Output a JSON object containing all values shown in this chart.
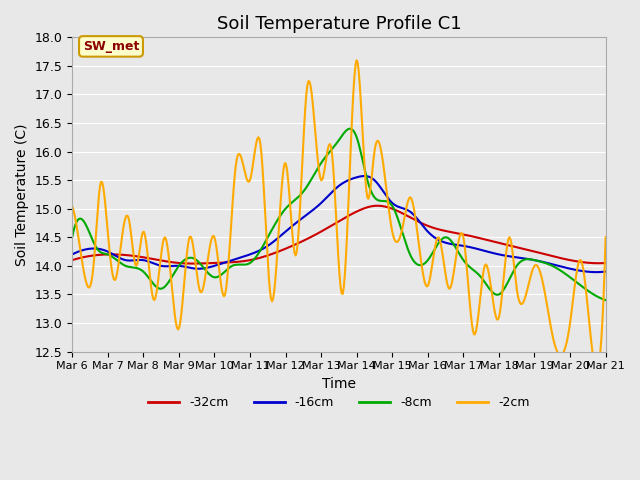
{
  "title": "Soil Temperature Profile C1",
  "xlabel": "Time",
  "ylabel": "Soil Temperature (C)",
  "ylim": [
    12.5,
    18.0
  ],
  "xlim": [
    0,
    15
  ],
  "x_tick_labels": [
    "Mar 6",
    "Mar 7",
    "Mar 8",
    "Mar 9",
    "Mar 10",
    "Mar 11",
    "Mar 12",
    "Mar 13",
    "Mar 14",
    "Mar 15",
    "Mar 16",
    "Mar 17",
    "Mar 18",
    "Mar 19",
    "Mar 20",
    "Mar 21"
  ],
  "background_color": "#e8e8e8",
  "plot_bg_color": "#e8e8e8",
  "legend_label": "SW_met",
  "legend_bg": "#ffffcc",
  "legend_border": "#cc9900",
  "series": {
    "d32": {
      "label": "-32cm",
      "color": "#cc0000",
      "lw": 1.5
    },
    "d16": {
      "label": "-16cm",
      "color": "#0000cc",
      "lw": 1.5
    },
    "d8": {
      "label": "-8cm",
      "color": "#00aa00",
      "lw": 1.5
    },
    "d2": {
      "label": "-2cm",
      "color": "#ffaa00",
      "lw": 1.5
    }
  }
}
